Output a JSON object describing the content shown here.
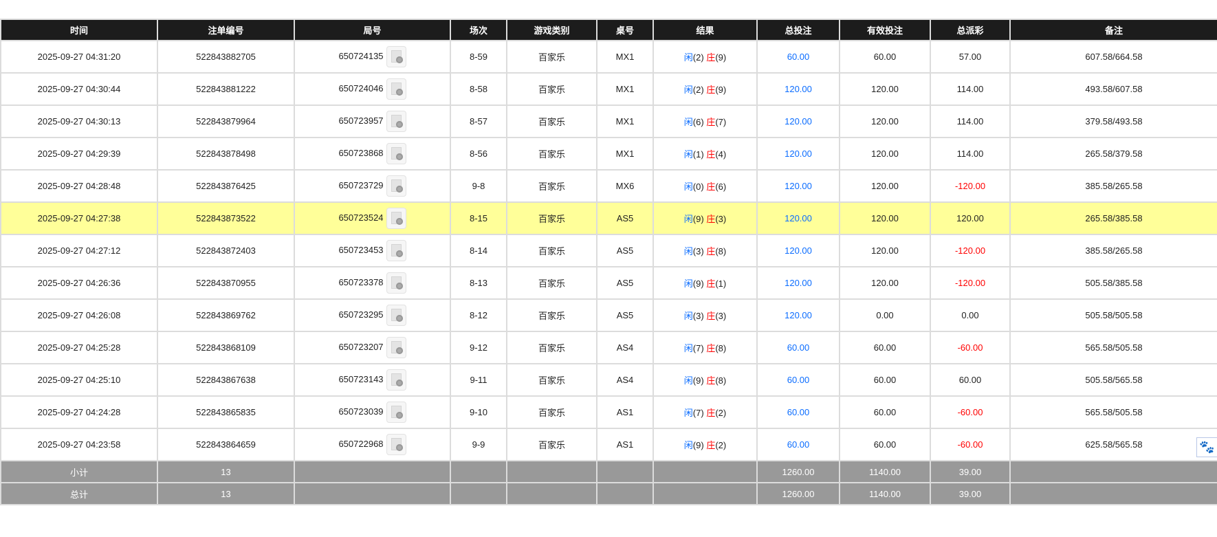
{
  "headers": [
    "时间",
    "注单编号",
    "局号",
    "场次",
    "游戏类别",
    "桌号",
    "结果",
    "总投注",
    "有效投注",
    "总派彩",
    "备注"
  ],
  "colors": {
    "header_bg": "#1c1c1c",
    "highlight": "#ffff99",
    "player": "#0a6cff",
    "banker": "#ff0000",
    "negative": "#ff0000",
    "summary_bg": "#999999"
  },
  "result_labels": {
    "player": "闲",
    "banker": "庄"
  },
  "rows": [
    {
      "time": "2025-09-27 04:31:20",
      "bet_id": "522843882705",
      "round": "650724135",
      "shoe": "8-59",
      "game": "百家乐",
      "table": "MX1",
      "player": "(2)",
      "banker": "(9)",
      "total_bet": "60.00",
      "valid_bet": "60.00",
      "payout": "57.00",
      "note": "607.58/664.58"
    },
    {
      "time": "2025-09-27 04:30:44",
      "bet_id": "522843881222",
      "round": "650724046",
      "shoe": "8-58",
      "game": "百家乐",
      "table": "MX1",
      "player": "(2)",
      "banker": "(9)",
      "total_bet": "120.00",
      "valid_bet": "120.00",
      "payout": "114.00",
      "note": "493.58/607.58"
    },
    {
      "time": "2025-09-27 04:30:13",
      "bet_id": "522843879964",
      "round": "650723957",
      "shoe": "8-57",
      "game": "百家乐",
      "table": "MX1",
      "player": "(6)",
      "banker": "(7)",
      "total_bet": "120.00",
      "valid_bet": "120.00",
      "payout": "114.00",
      "note": "379.58/493.58"
    },
    {
      "time": "2025-09-27 04:29:39",
      "bet_id": "522843878498",
      "round": "650723868",
      "shoe": "8-56",
      "game": "百家乐",
      "table": "MX1",
      "player": "(1)",
      "banker": "(4)",
      "total_bet": "120.00",
      "valid_bet": "120.00",
      "payout": "114.00",
      "note": "265.58/379.58"
    },
    {
      "time": "2025-09-27 04:28:48",
      "bet_id": "522843876425",
      "round": "650723729",
      "shoe": "9-8",
      "game": "百家乐",
      "table": "MX6",
      "player": "(0)",
      "banker": "(6)",
      "total_bet": "120.00",
      "valid_bet": "120.00",
      "payout": "-120.00",
      "note": "385.58/265.58"
    },
    {
      "time": "2025-09-27 04:27:38",
      "bet_id": "522843873522",
      "round": "650723524",
      "shoe": "8-15",
      "game": "百家乐",
      "table": "AS5",
      "player": "(9)",
      "banker": "(3)",
      "total_bet": "120.00",
      "valid_bet": "120.00",
      "payout": "120.00",
      "note": "265.58/385.58",
      "highlighted": true
    },
    {
      "time": "2025-09-27 04:27:12",
      "bet_id": "522843872403",
      "round": "650723453",
      "shoe": "8-14",
      "game": "百家乐",
      "table": "AS5",
      "player": "(3)",
      "banker": "(8)",
      "total_bet": "120.00",
      "valid_bet": "120.00",
      "payout": "-120.00",
      "note": "385.58/265.58"
    },
    {
      "time": "2025-09-27 04:26:36",
      "bet_id": "522843870955",
      "round": "650723378",
      "shoe": "8-13",
      "game": "百家乐",
      "table": "AS5",
      "player": "(9)",
      "banker": "(1)",
      "total_bet": "120.00",
      "valid_bet": "120.00",
      "payout": "-120.00",
      "note": "505.58/385.58"
    },
    {
      "time": "2025-09-27 04:26:08",
      "bet_id": "522843869762",
      "round": "650723295",
      "shoe": "8-12",
      "game": "百家乐",
      "table": "AS5",
      "player": "(3)",
      "banker": "(3)",
      "total_bet": "120.00",
      "valid_bet": "0.00",
      "payout": "0.00",
      "note": "505.58/505.58"
    },
    {
      "time": "2025-09-27 04:25:28",
      "bet_id": "522843868109",
      "round": "650723207",
      "shoe": "9-12",
      "game": "百家乐",
      "table": "AS4",
      "player": "(7)",
      "banker": "(8)",
      "total_bet": "60.00",
      "valid_bet": "60.00",
      "payout": "-60.00",
      "note": "565.58/505.58"
    },
    {
      "time": "2025-09-27 04:25:10",
      "bet_id": "522843867638",
      "round": "650723143",
      "shoe": "9-11",
      "game": "百家乐",
      "table": "AS4",
      "player": "(9)",
      "banker": "(8)",
      "total_bet": "60.00",
      "valid_bet": "60.00",
      "payout": "60.00",
      "note": "505.58/565.58"
    },
    {
      "time": "2025-09-27 04:24:28",
      "bet_id": "522843865835",
      "round": "650723039",
      "shoe": "9-10",
      "game": "百家乐",
      "table": "AS1",
      "player": "(7)",
      "banker": "(2)",
      "total_bet": "60.00",
      "valid_bet": "60.00",
      "payout": "-60.00",
      "note": "565.58/505.58"
    },
    {
      "time": "2025-09-27 04:23:58",
      "bet_id": "522843864659",
      "round": "650722968",
      "shoe": "9-9",
      "game": "百家乐",
      "table": "AS1",
      "player": "(9)",
      "banker": "(2)",
      "total_bet": "60.00",
      "valid_bet": "60.00",
      "payout": "-60.00",
      "note": "625.58/565.58"
    }
  ],
  "summary": [
    {
      "label": "小计",
      "count": "13",
      "total_bet": "1260.00",
      "valid_bet": "1140.00",
      "payout": "39.00"
    },
    {
      "label": "总计",
      "count": "13",
      "total_bet": "1260.00",
      "valid_bet": "1140.00",
      "payout": "39.00"
    }
  ],
  "floating_icon": "paw-icon"
}
